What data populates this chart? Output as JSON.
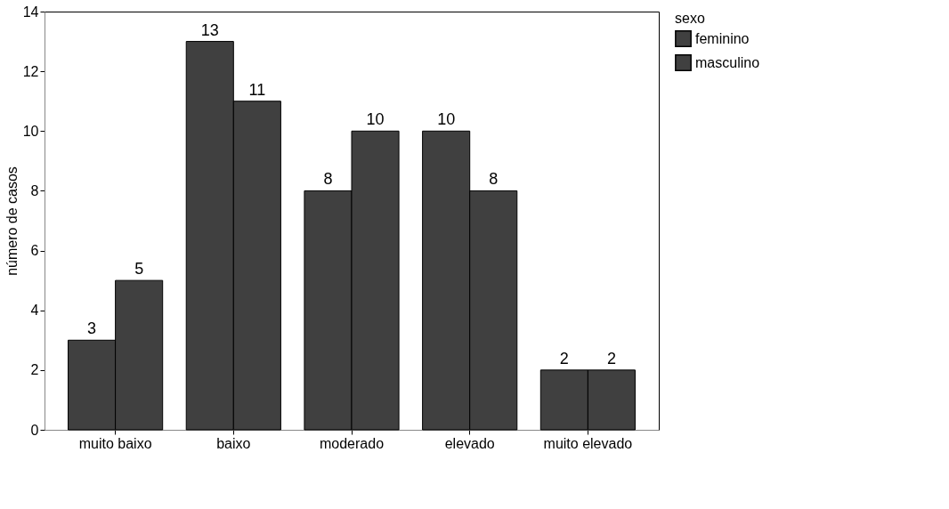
{
  "chart_data": {
    "type": "bar",
    "ylabel": "número de casos",
    "legend_title": "sexo",
    "categories": [
      "muito baixo",
      "baixo",
      "moderado",
      "elevado",
      "muito elevado"
    ],
    "series": [
      {
        "name": "feminino",
        "color": "#404040",
        "values": [
          3,
          13,
          8,
          10,
          2
        ]
      },
      {
        "name": "masculino",
        "color": "#404040",
        "values": [
          5,
          11,
          10,
          8,
          2
        ]
      }
    ],
    "ylim": [
      0,
      14
    ],
    "yticks": [
      0,
      2,
      4,
      6,
      8,
      10,
      12,
      14
    ],
    "grid": false,
    "legend": "right",
    "data_labels": true
  }
}
